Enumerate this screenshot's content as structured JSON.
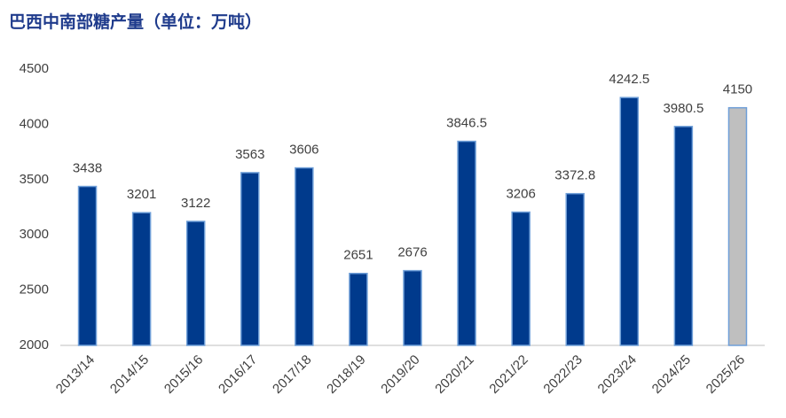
{
  "chart_data": {
    "type": "bar",
    "title": "巴西中南部糖产量（单位：万吨）",
    "categories": [
      "2013/14",
      "2014/15",
      "2015/16",
      "2016/17",
      "2017/18",
      "2018/19",
      "2019/20",
      "2020/21",
      "2021/22",
      "2022/23",
      "2023/24",
      "2024/25",
      "2025/26"
    ],
    "values": [
      3438,
      3201,
      3122,
      3563,
      3606,
      2651,
      2676,
      3846.5,
      3206,
      3372.8,
      4242.5,
      3980.5,
      4150
    ],
    "colors": [
      "#003a8c",
      "#003a8c",
      "#003a8c",
      "#003a8c",
      "#003a8c",
      "#003a8c",
      "#003a8c",
      "#003a8c",
      "#003a8c",
      "#003a8c",
      "#003a8c",
      "#003a8c",
      "#bfbfbf"
    ],
    "ylim": [
      2000,
      4500
    ],
    "yticks": [
      2000,
      2500,
      3000,
      3500,
      4000,
      4500
    ],
    "grid": false
  }
}
